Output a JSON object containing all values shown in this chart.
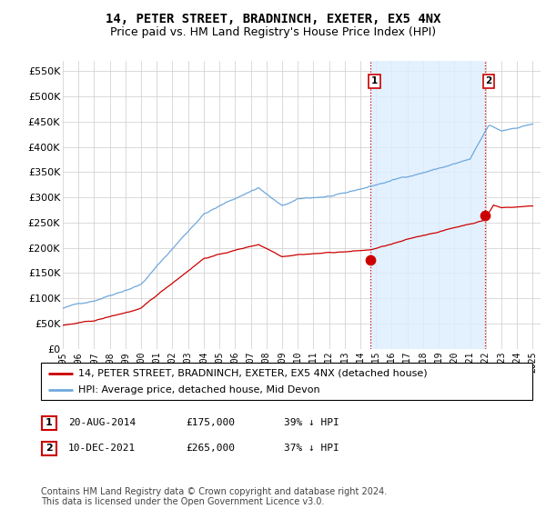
{
  "title": "14, PETER STREET, BRADNINCH, EXETER, EX5 4NX",
  "subtitle": "Price paid vs. HM Land Registry's House Price Index (HPI)",
  "ylim": [
    0,
    570000
  ],
  "yticks": [
    0,
    50000,
    100000,
    150000,
    200000,
    250000,
    300000,
    350000,
    400000,
    450000,
    500000,
    550000
  ],
  "ytick_labels": [
    "£0",
    "£50K",
    "£100K",
    "£150K",
    "£200K",
    "£250K",
    "£300K",
    "£350K",
    "£400K",
    "£450K",
    "£500K",
    "£550K"
  ],
  "hpi_color": "#6fa8dc",
  "price_color": "#cc0000",
  "vline_color": "#cc0000",
  "vline_style": ":",
  "shading_color": "#ddeeff",
  "grid_color": "#cccccc",
  "background_color": "#ffffff",
  "sale1_x": 2014.64,
  "sale1_y": 175000,
  "sale2_x": 2021.94,
  "sale2_y": 265000,
  "xmin": 1995,
  "xmax": 2025.5,
  "legend_entries": [
    "14, PETER STREET, BRADNINCH, EXETER, EX5 4NX (detached house)",
    "HPI: Average price, detached house, Mid Devon"
  ],
  "table_rows": [
    {
      "num": "1",
      "date": "20-AUG-2014",
      "price": "£175,000",
      "hpi": "39% ↓ HPI"
    },
    {
      "num": "2",
      "date": "10-DEC-2021",
      "price": "£265,000",
      "hpi": "37% ↓ HPI"
    }
  ],
  "footnote": "Contains HM Land Registry data © Crown copyright and database right 2024.\nThis data is licensed under the Open Government Licence v3.0.",
  "title_fontsize": 10,
  "subtitle_fontsize": 9,
  "tick_fontsize": 8,
  "legend_fontsize": 8,
  "table_fontsize": 8,
  "footnote_fontsize": 7
}
